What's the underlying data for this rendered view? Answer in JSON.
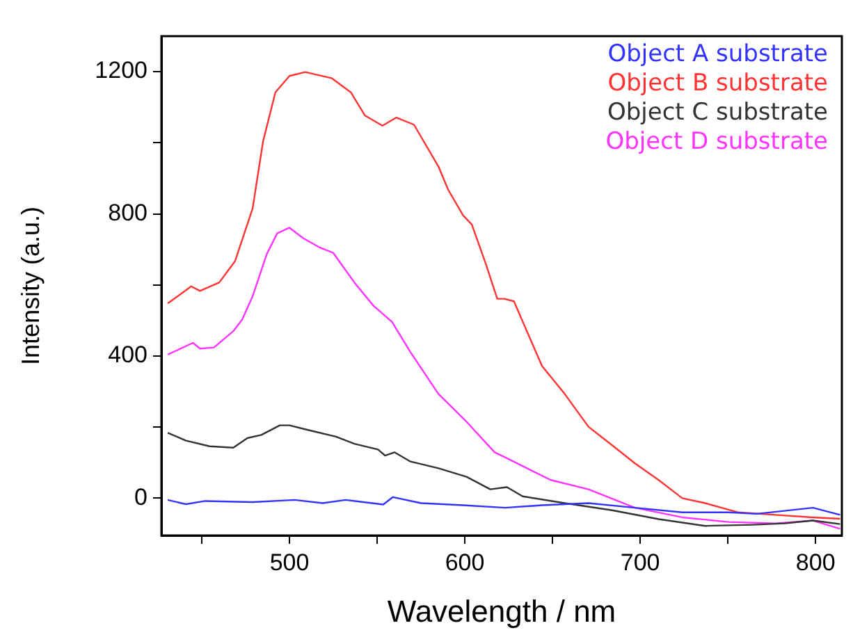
{
  "chart_data": {
    "type": "line",
    "xlabel": "Wavelength / nm",
    "ylabel": "Intensity (a.u.)",
    "xlim": [
      427,
      815
    ],
    "ylim": [
      -105,
      1300
    ],
    "xticks": [
      {
        "value": 450,
        "label": null
      },
      500,
      {
        "value": 550,
        "label": null
      },
      600,
      {
        "value": 650,
        "label": null
      },
      700,
      {
        "value": 750,
        "label": null
      },
      800
    ],
    "yticks": [
      0,
      {
        "value": 200,
        "label": null
      },
      400,
      {
        "value": 600,
        "label": null
      },
      800,
      {
        "value": 1000,
        "label": null
      },
      1200
    ],
    "legend": "top right",
    "grid": false,
    "marker": "none",
    "line_style": "solid",
    "series": [
      {
        "name": "Object A substrate",
        "color": "#3333ff",
        "x": [
          430.6,
          441,
          452,
          479,
          503,
          519,
          532,
          553.5,
          559,
          575,
          599,
          623,
          644,
          670.5,
          697,
          724,
          750.5,
          766.5,
          798.5,
          814
        ],
        "values": [
          -5,
          -17,
          -8,
          -11,
          -5,
          -14,
          -5,
          -18,
          3,
          -14,
          -20,
          -27,
          -20,
          -14,
          -27,
          -40,
          -40,
          -44,
          -27,
          -47
        ]
      },
      {
        "name": "Object B substrate",
        "color": "#ff3333",
        "x": [
          430.6,
          444,
          449,
          460,
          469,
          479,
          485,
          492,
          500,
          509,
          524,
          535,
          543,
          553,
          561,
          571,
          585,
          590.5,
          599,
          604,
          612,
          618.5,
          622.5,
          628,
          644,
          657,
          670.5,
          684,
          697,
          710.5,
          724,
          737,
          756,
          777,
          798.5,
          814
        ],
        "values": [
          548,
          596,
          583,
          607,
          667,
          815,
          1005,
          1142,
          1188,
          1199,
          1182,
          1142,
          1077,
          1048,
          1071,
          1051,
          933,
          868,
          796,
          770,
          659,
          561,
          561,
          554,
          372,
          293,
          201,
          149,
          98,
          51,
          0,
          -14,
          -40,
          -47,
          -54,
          -58
        ]
      },
      {
        "name": "Object C substrate",
        "color": "#333333",
        "x": [
          430.6,
          441,
          454.5,
          468,
          476,
          484,
          494.5,
          500,
          510.5,
          526.5,
          537,
          550.5,
          554.5,
          560,
          569,
          585,
          601,
          614.5,
          624,
          633,
          657,
          684,
          710.5,
          737,
          764,
          782.5,
          798.5,
          814
        ],
        "values": [
          184,
          162,
          146,
          142,
          169,
          178,
          205,
          205,
          192,
          173,
          153,
          137,
          120,
          129,
          103,
          84,
          60,
          25,
          31,
          5,
          -14,
          -34,
          -59,
          -78,
          -75,
          -71,
          -63,
          -73
        ]
      },
      {
        "name": "Object D substrate",
        "color": "#ff33ff",
        "x": [
          430.6,
          445,
          449,
          457,
          468,
          473,
          479,
          487,
          493,
          500,
          508,
          517,
          525,
          537,
          548,
          558.5,
          569,
          585,
          601,
          617,
          625,
          649,
          670.5,
          697,
          724,
          750.5,
          777,
          798.5,
          814
        ],
        "values": [
          404,
          437,
          421,
          424,
          470,
          502,
          568,
          686,
          745,
          761,
          731,
          706,
          690,
          607,
          541,
          496,
          411,
          293,
          215,
          129,
          110,
          51,
          25,
          -27,
          -54,
          -67,
          -71,
          -63,
          -86
        ]
      }
    ]
  }
}
